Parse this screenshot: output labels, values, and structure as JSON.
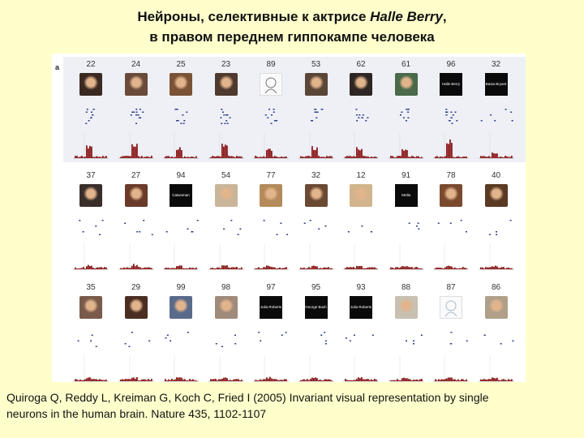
{
  "title": {
    "line1_prefix": "Нейроны, селективные к актрисе ",
    "line1_name": "Halle Berry",
    "line1_suffix": ",",
    "line2": "в правом переднем гиппокампе человека"
  },
  "figure": {
    "panel_letter": "a",
    "rows": [
      {
        "highlighted": true,
        "cells": [
          {
            "num": "22",
            "kind": "photo",
            "color": "#3b2a22",
            "response": 0.6
          },
          {
            "num": "24",
            "kind": "photo",
            "color": "#6a4a3a",
            "response": 0.7
          },
          {
            "num": "25",
            "kind": "photo",
            "color": "#7a5236",
            "response": 0.5
          },
          {
            "num": "23",
            "kind": "photo",
            "color": "#4e3a2e",
            "response": 0.6
          },
          {
            "num": "89",
            "kind": "sketch",
            "color": "#777777",
            "response": 0.4
          },
          {
            "num": "53",
            "kind": "photo",
            "color": "#5a4636",
            "response": 0.5
          },
          {
            "num": "62",
            "kind": "photo",
            "color": "#2e2622",
            "response": 0.5
          },
          {
            "num": "61",
            "kind": "photo",
            "color": "#4a6a4a",
            "response": 0.4
          },
          {
            "num": "96",
            "kind": "text",
            "text": "Halle Berry",
            "response": 0.9
          },
          {
            "num": "32",
            "kind": "text",
            "text": "Basia Bryant",
            "response": 0.2
          }
        ]
      },
      {
        "highlighted": false,
        "cells": [
          {
            "num": "37",
            "kind": "photo",
            "color": "#3a2e2a",
            "response": 0.15
          },
          {
            "num": "27",
            "kind": "photo",
            "color": "#6a3a2a",
            "response": 0.15
          },
          {
            "num": "94",
            "kind": "text",
            "text": "Catwoman",
            "response": 0.15
          },
          {
            "num": "54",
            "kind": "photo",
            "color": "#c9b59a",
            "response": 0.1
          },
          {
            "num": "77",
            "kind": "photo",
            "color": "#b48a5a",
            "response": 0.1
          },
          {
            "num": "32",
            "kind": "photo",
            "color": "#6a4a32",
            "response": 0.1
          },
          {
            "num": "12",
            "kind": "photo",
            "color": "#d2b48c",
            "response": 0.1
          },
          {
            "num": "91",
            "kind": "text",
            "text": "Stella",
            "response": 0.1
          },
          {
            "num": "78",
            "kind": "photo",
            "color": "#7a4a2e",
            "response": 0.1
          },
          {
            "num": "40",
            "kind": "photo",
            "color": "#5a3a22",
            "response": 0.1
          }
        ]
      },
      {
        "highlighted": false,
        "cells": [
          {
            "num": "35",
            "kind": "photo",
            "color": "#7a5a4a",
            "response": 0.1
          },
          {
            "num": "29",
            "kind": "photo",
            "color": "#4a2e22",
            "response": 0.1
          },
          {
            "num": "99",
            "kind": "photo",
            "color": "#5a6a8a",
            "response": 0.1
          },
          {
            "num": "98",
            "kind": "photo",
            "color": "#a08a7a",
            "response": 0.1
          },
          {
            "num": "97",
            "kind": "text",
            "text": "Julia Roberts",
            "response": 0.1
          },
          {
            "num": "95",
            "kind": "text",
            "text": "George Bush",
            "response": 0.1
          },
          {
            "num": "93",
            "kind": "text",
            "text": "Julia Roberts",
            "response": 0.1
          },
          {
            "num": "88",
            "kind": "photo",
            "color": "#c8c0b0",
            "response": 0.1
          },
          {
            "num": "87",
            "kind": "sketch",
            "color": "#aabbcc",
            "response": 0.1
          },
          {
            "num": "86",
            "kind": "photo",
            "color": "#b0a08a",
            "response": 0.1
          }
        ]
      }
    ]
  },
  "citation": {
    "line1": "Quiroga Q, Reddy L, Kreiman G, Koch C, Fried I (2005) Invariant visual representation by single",
    "line2": "neurons in the human brain. Nature 435, 1102-1107"
  },
  "colors": {
    "background": "#ffffcc",
    "histogram_bar": "#8b1a1a",
    "raster_dot": "#2a3a8a"
  }
}
